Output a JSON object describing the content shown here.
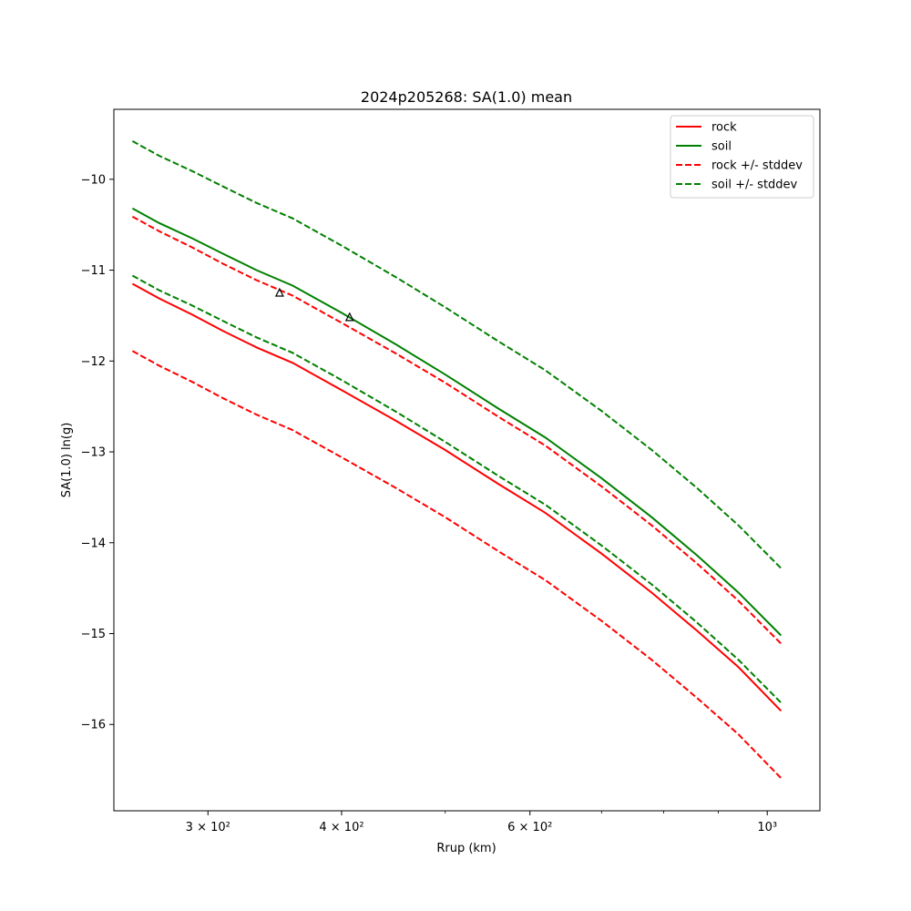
{
  "chart_data": {
    "type": "line",
    "title": "2024p205268: SA(1.0) mean",
    "xlabel": "Rrup (km)",
    "ylabel": "SA(1.0) ln(g)",
    "xscale": "log",
    "xlim": [
      245,
      1120
    ],
    "ylim": [
      -16.95,
      -9.23
    ],
    "grid": false,
    "legend_position": "top-right",
    "x": [
      255,
      270,
      290,
      310,
      333,
      360,
      400,
      450,
      500,
      560,
      620,
      700,
      780,
      860,
      940,
      1030
    ],
    "series": [
      {
        "name": "rock",
        "color": "#ff0000",
        "style": "solid",
        "values": [
          -11.15,
          -11.31,
          -11.49,
          -11.67,
          -11.85,
          -12.02,
          -12.32,
          -12.66,
          -12.98,
          -13.35,
          -13.67,
          -14.12,
          -14.55,
          -14.97,
          -15.37,
          -15.85
        ]
      },
      {
        "name": "soil",
        "color": "#008000",
        "style": "solid",
        "values": [
          -10.32,
          -10.48,
          -10.65,
          -10.82,
          -11.0,
          -11.17,
          -11.47,
          -11.82,
          -12.15,
          -12.52,
          -12.84,
          -13.29,
          -13.72,
          -14.14,
          -14.55,
          -15.02
        ]
      },
      {
        "name": "rock +/- stddev",
        "color": "#ff0000",
        "style": "dashed",
        "values": [
          -10.41,
          -10.57,
          -10.75,
          -10.93,
          -11.11,
          -11.28,
          -11.58,
          -11.92,
          -12.24,
          -12.61,
          -12.93,
          -13.38,
          -13.81,
          -14.23,
          -14.64,
          -15.11
        ]
      },
      {
        "color": "#ff0000",
        "style": "dashed",
        "values": [
          -11.89,
          -12.05,
          -12.23,
          -12.41,
          -12.59,
          -12.76,
          -13.06,
          -13.4,
          -13.72,
          -14.09,
          -14.41,
          -14.86,
          -15.29,
          -15.71,
          -16.11,
          -16.59
        ]
      },
      {
        "name": "soil +/- stddev",
        "color": "#008000",
        "style": "dashed",
        "values": [
          -9.58,
          -9.74,
          -9.91,
          -10.08,
          -10.26,
          -10.43,
          -10.73,
          -11.08,
          -11.41,
          -11.78,
          -12.1,
          -12.55,
          -12.98,
          -13.4,
          -13.81,
          -14.28
        ]
      },
      {
        "color": "#008000",
        "style": "dashed",
        "values": [
          -11.06,
          -11.22,
          -11.39,
          -11.56,
          -11.74,
          -11.91,
          -12.21,
          -12.56,
          -12.89,
          -13.26,
          -13.58,
          -14.03,
          -14.46,
          -14.88,
          -15.29,
          -15.76
        ]
      }
    ],
    "observations": [
      {
        "x": 350,
        "y": -11.25,
        "marker": "triangle"
      },
      {
        "x": 407,
        "y": -11.52,
        "marker": "triangle"
      }
    ],
    "xticks": [
      {
        "value": 300,
        "label": "3 × 10²"
      },
      {
        "value": 400,
        "label": "4 × 10²"
      },
      {
        "value": 600,
        "label": "6 × 10²"
      },
      {
        "value": 1000,
        "label": "10³"
      }
    ],
    "minor_xticks": [
      500,
      700,
      800,
      900
    ],
    "yticks": [
      {
        "value": -10,
        "label": "−10"
      },
      {
        "value": -11,
        "label": "−11"
      },
      {
        "value": -12,
        "label": "−12"
      },
      {
        "value": -13,
        "label": "−13"
      },
      {
        "value": -14,
        "label": "−14"
      },
      {
        "value": -15,
        "label": "−15"
      },
      {
        "value": -16,
        "label": "−16"
      }
    ]
  }
}
